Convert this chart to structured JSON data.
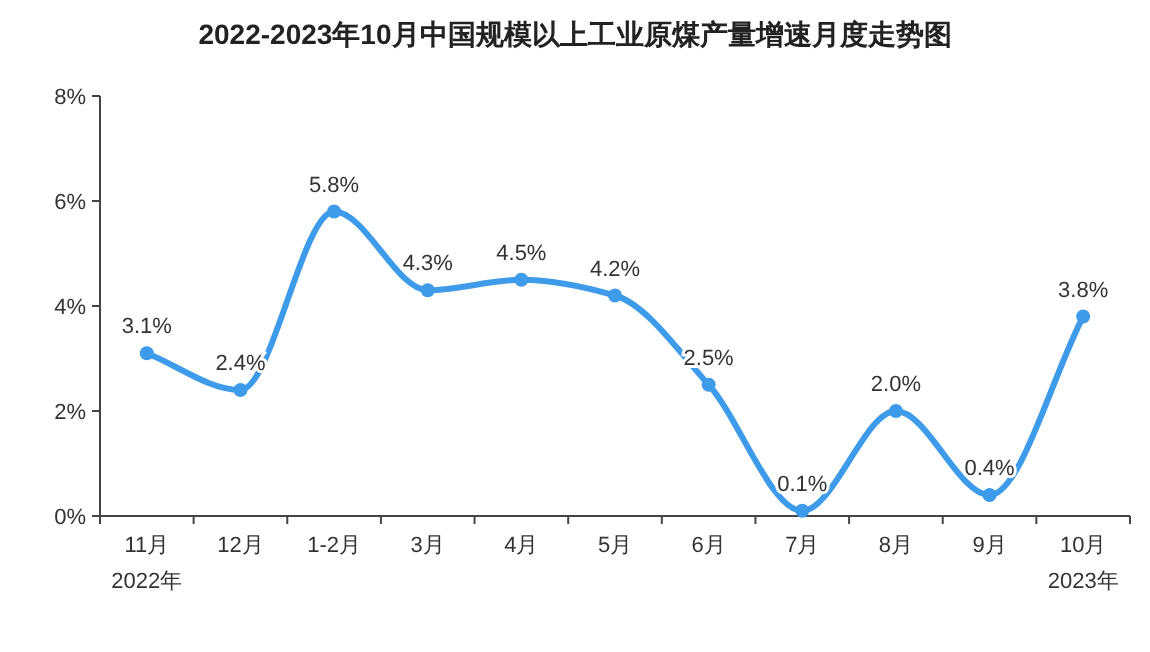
{
  "chart_data": {
    "type": "line",
    "title": "2022-2023年10月中国规模以上工业原煤产量增速月度走势图",
    "categories": [
      "11月",
      "12月",
      "1-2月",
      "3月",
      "4月",
      "5月",
      "6月",
      "7月",
      "8月",
      "9月",
      "10月"
    ],
    "series": [
      {
        "color": "#3d9be9",
        "values": [
          3.1,
          2.4,
          5.8,
          4.3,
          4.5,
          4.2,
          2.5,
          0.1,
          2.0,
          0.4,
          3.8
        ],
        "value_labels": [
          "3.1%",
          "2.4%",
          "5.8%",
          "4.3%",
          "4.5%",
          "4.2%",
          "2.5%",
          "0.1%",
          "2.0%",
          "0.4%",
          "3.8%"
        ]
      }
    ],
    "ylim": [
      0,
      8
    ],
    "yticks": [
      {
        "value": 0,
        "label": "0%"
      },
      {
        "value": 2,
        "label": "2%"
      },
      {
        "value": 4,
        "label": "4%"
      },
      {
        "value": 6,
        "label": "6%"
      },
      {
        "value": 8,
        "label": "8%"
      }
    ],
    "annotations": [
      "2022年",
      "2023年"
    ],
    "grid": false,
    "marker": "circle",
    "line_style": "solid"
  }
}
